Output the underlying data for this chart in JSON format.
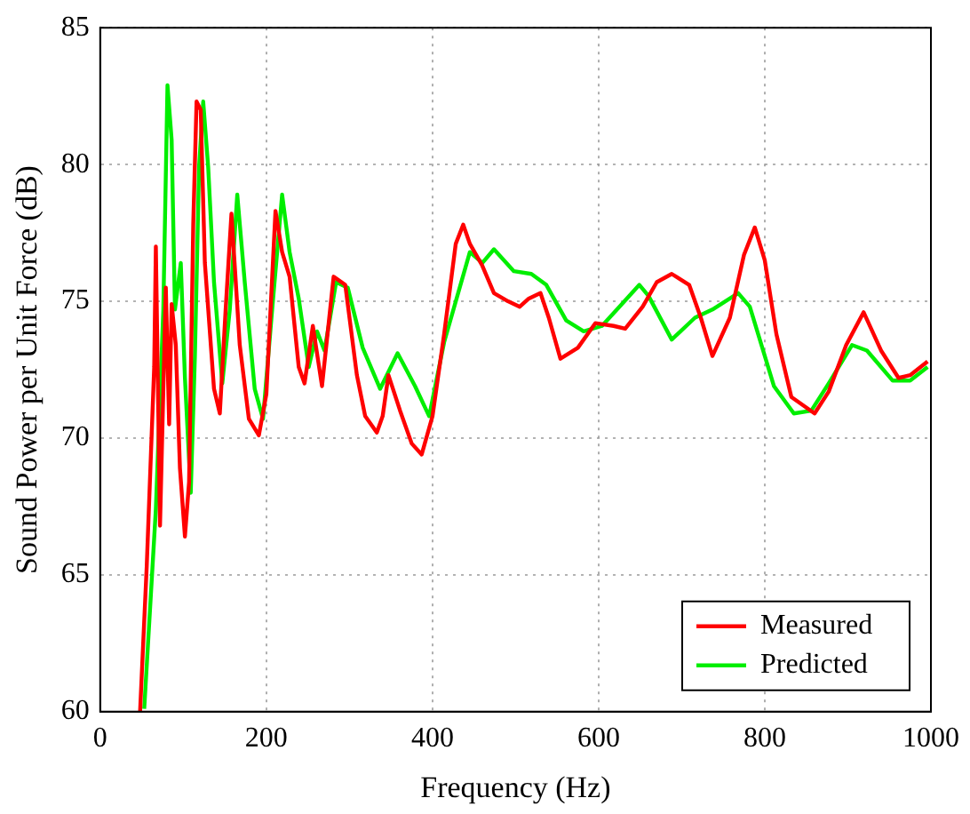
{
  "chart_data": {
    "type": "line",
    "xlabel": "Frequency (Hz)",
    "ylabel": "Sound Power per Unit Force (dB)",
    "xlim": [
      0,
      1000
    ],
    "xticks": [
      0,
      200,
      400,
      600,
      800,
      1000
    ],
    "ylim": [
      60,
      85
    ],
    "yticks": [
      60,
      65,
      70,
      75,
      80,
      85
    ],
    "grid": true,
    "legend": "bottom right",
    "marker": "none",
    "line_style": "solid",
    "series": [
      {
        "name": "Measured",
        "color": "#ff0000",
        "x": [
          48,
          56,
          65,
          67,
          72,
          79,
          83,
          86,
          91,
          96,
          102,
          107,
          112,
          116,
          121,
          126,
          137,
          144,
          151,
          158,
          168,
          179,
          191,
          200,
          211,
          219,
          228,
          239,
          246,
          256,
          267,
          281,
          295,
          309,
          319,
          333,
          340,
          347,
          361,
          375,
          387,
          400,
          414,
          428,
          437,
          445,
          460,
          474,
          491,
          505,
          516,
          530,
          540,
          554,
          575,
          596,
          618,
          632,
          653,
          670,
          688,
          709,
          723,
          737,
          758,
          775,
          788,
          800,
          814,
          832,
          846,
          860,
          877,
          898,
          919,
          940,
          961,
          975,
          996
        ],
        "values": [
          60,
          65.3,
          72.6,
          77,
          66.8,
          75.5,
          70.5,
          74.9,
          73.4,
          68.9,
          66.4,
          68.4,
          77.8,
          82.3,
          82,
          76.4,
          71.8,
          70.9,
          74.7,
          78.2,
          73.4,
          70.7,
          70.1,
          71.6,
          78.3,
          76.8,
          75.9,
          72.6,
          72,
          74.1,
          71.9,
          75.9,
          75.6,
          72.3,
          70.8,
          70.2,
          70.8,
          72.3,
          71,
          69.8,
          69.4,
          70.8,
          73.8,
          77.1,
          77.8,
          77.1,
          76.3,
          75.3,
          75,
          74.8,
          75.1,
          75.3,
          74.4,
          72.9,
          73.3,
          74.2,
          74.1,
          74,
          74.8,
          75.7,
          76,
          75.6,
          74.4,
          73,
          74.4,
          76.7,
          77.7,
          76.5,
          73.8,
          71.5,
          71.2,
          70.9,
          71.7,
          73.4,
          74.6,
          73.2,
          72.2,
          72.3,
          72.8
        ]
      },
      {
        "name": "Predicted",
        "color": "#00ee00",
        "x": [
          53,
          67,
          76,
          81,
          86,
          90,
          97,
          102,
          109,
          114,
          119,
          124,
          130,
          137,
          147,
          156,
          165,
          174,
          186,
          196,
          207,
          219,
          228,
          239,
          251,
          261,
          270,
          284,
          298,
          316,
          337,
          358,
          379,
          396,
          414,
          445,
          460,
          474,
          498,
          519,
          537,
          561,
          582,
          604,
          625,
          649,
          660,
          688,
          716,
          737,
          768,
          782,
          811,
          835,
          856,
          877,
          905,
          923,
          954,
          975,
          996
        ],
        "values": [
          60.1,
          67.4,
          74.7,
          82.9,
          80.9,
          74.7,
          76.4,
          72.2,
          68,
          73,
          79.9,
          82.3,
          79.9,
          75.7,
          72,
          74.7,
          78.9,
          75.7,
          71.8,
          70.7,
          74.7,
          78.9,
          76.8,
          75.1,
          72.6,
          73.9,
          73.2,
          75.7,
          75.5,
          73.3,
          71.8,
          73.1,
          71.9,
          70.8,
          73.5,
          76.8,
          76.4,
          76.9,
          76.1,
          76,
          75.6,
          74.3,
          73.9,
          74.1,
          74.8,
          75.6,
          75.2,
          73.6,
          74.4,
          74.7,
          75.3,
          74.8,
          71.9,
          70.9,
          71,
          72,
          73.4,
          73.2,
          72.1,
          72.1,
          72.6
        ]
      }
    ]
  }
}
